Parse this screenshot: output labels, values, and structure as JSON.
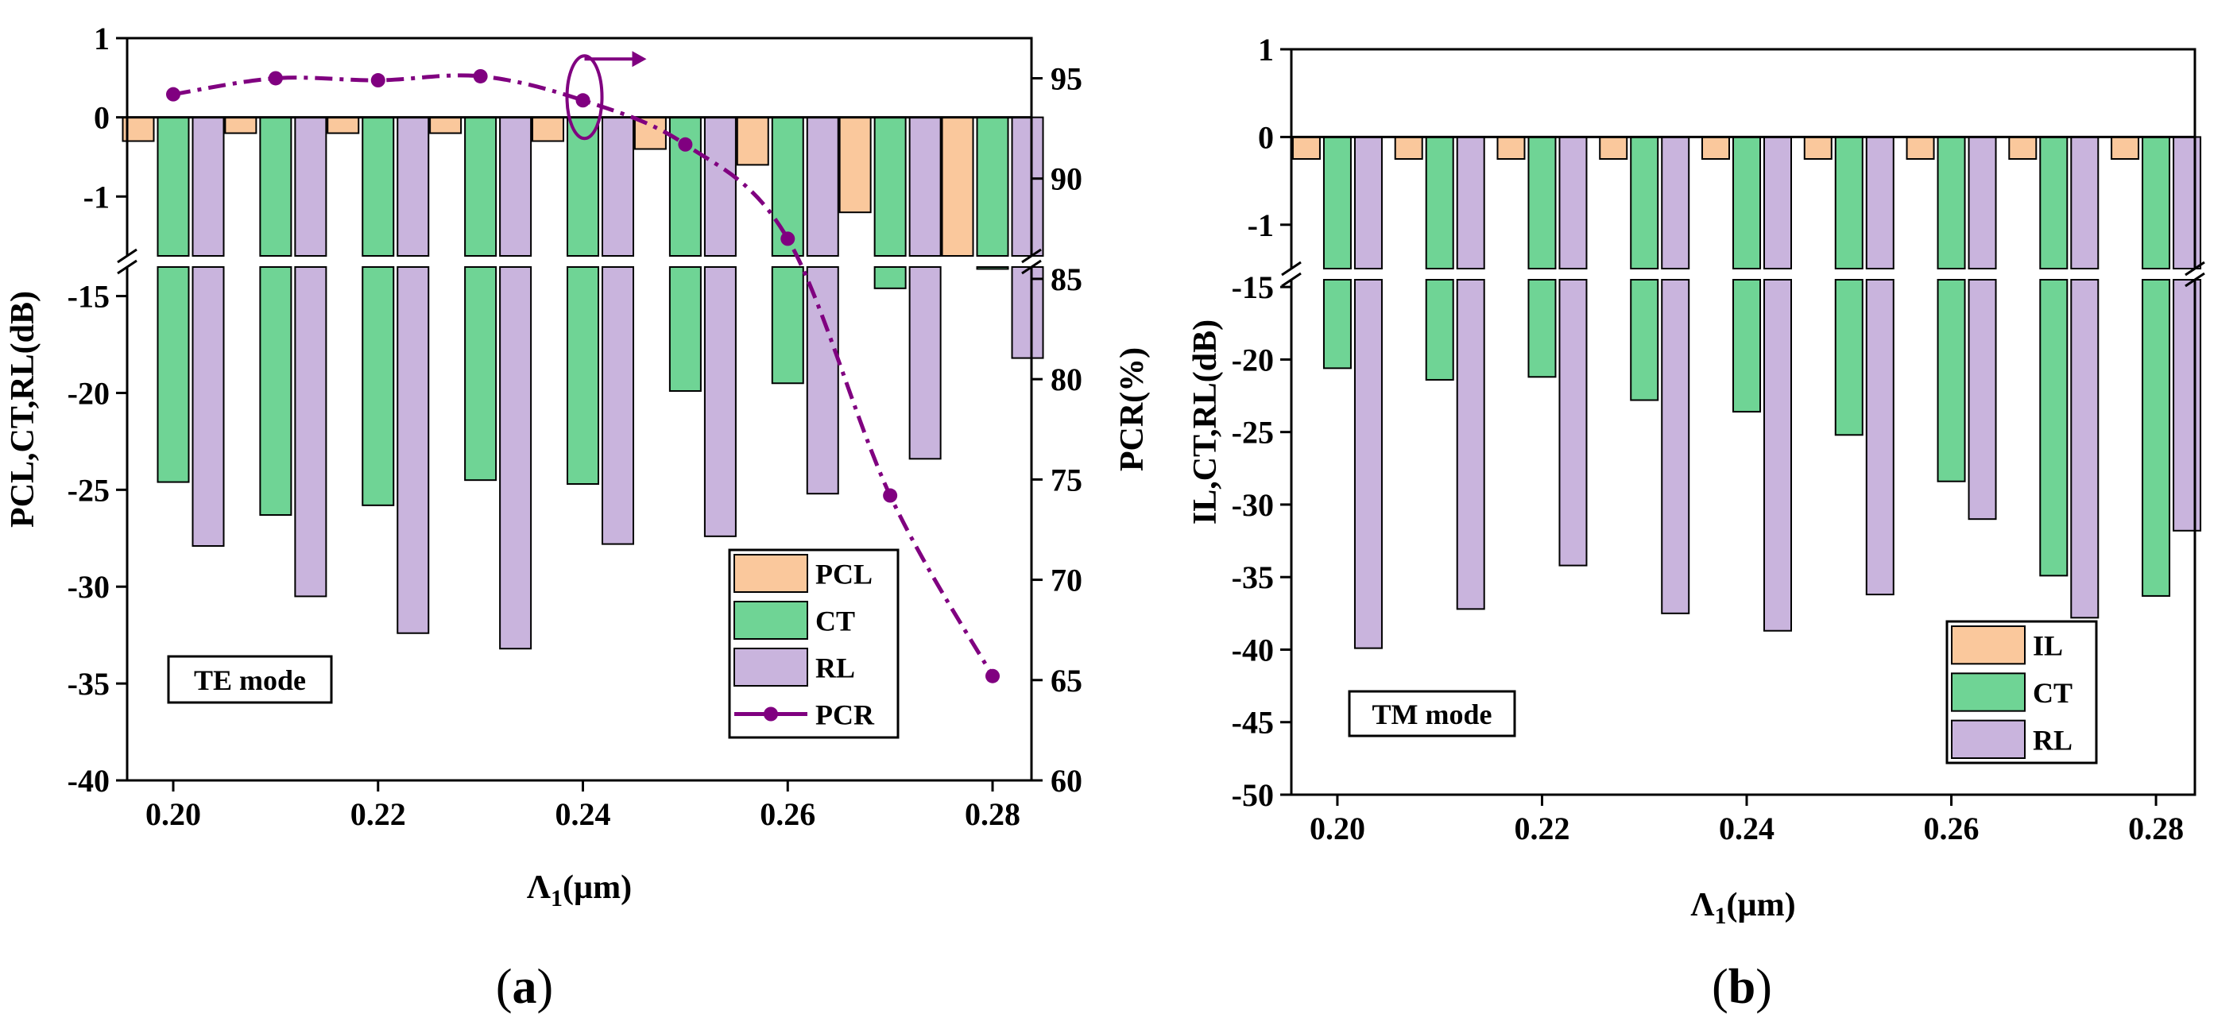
{
  "colors": {
    "orange": "#FAC89C",
    "green": "#6FD495",
    "purple": "#C9B4DD",
    "line": "#800080",
    "break": "#FFFFFF"
  },
  "panel_labels": {
    "a": "a",
    "b": "b"
  },
  "chart_data": [
    {
      "type": "bar",
      "panel": "a",
      "mode_label": "TE mode",
      "xlabel_main": "Λ",
      "xlabel_sub": "1",
      "xlabel_unit": "(µm)",
      "ylabel": "PCL,CT,RL(dB)",
      "y2label": "PCR(%)",
      "x": [
        0.2,
        0.21,
        0.22,
        0.23,
        0.24,
        0.25,
        0.26,
        0.27,
        0.28
      ],
      "x_ticks": [
        "0.20",
        "0.22",
        "0.24",
        "0.26",
        "0.28"
      ],
      "y_ticks_top": [
        "1",
        "0",
        "-1"
      ],
      "y_ticks_bottom": [
        "-15",
        "-20",
        "-25",
        "-30",
        "-35",
        "-40"
      ],
      "y2_ticks": [
        "95",
        "90",
        "85",
        "80",
        "75",
        "70",
        "65",
        "60"
      ],
      "ylim_top": [
        -1.75,
        1.0
      ],
      "ylim_bottom": [
        -40,
        -13.5
      ],
      "y2lim": [
        60,
        97
      ],
      "series": [
        {
          "name": "PCL",
          "color_key": "orange",
          "values": [
            -0.3,
            -0.2,
            -0.2,
            -0.2,
            -0.3,
            -0.4,
            -0.6,
            -1.2,
            -1.75
          ]
        },
        {
          "name": "CT",
          "color_key": "green",
          "values": [
            -24.6,
            -26.3,
            -25.8,
            -24.5,
            -24.7,
            -19.9,
            -19.5,
            -14.6,
            -13.6
          ]
        },
        {
          "name": "RL",
          "color_key": "purple",
          "values": [
            -27.9,
            -30.5,
            -32.4,
            -33.2,
            -27.8,
            -27.4,
            -25.2,
            -23.4,
            -18.2
          ]
        },
        {
          "name": "PCR",
          "type": "line",
          "color_key": "line",
          "values": [
            94.2,
            95.0,
            94.9,
            95.1,
            93.9,
            91.7,
            87.0,
            74.2,
            65.2
          ]
        }
      ],
      "legend": [
        "PCL",
        "CT",
        "RL",
        "PCR"
      ]
    },
    {
      "type": "bar",
      "panel": "b",
      "mode_label": "TM mode",
      "xlabel_main": "Λ",
      "xlabel_sub": "1",
      "xlabel_unit": "(µm)",
      "ylabel": "IL,CT,RL(dB)",
      "x": [
        0.2,
        0.21,
        0.22,
        0.23,
        0.24,
        0.25,
        0.26,
        0.27,
        0.28
      ],
      "x_ticks": [
        "0.20",
        "0.22",
        "0.24",
        "0.26",
        "0.28"
      ],
      "y_ticks_top": [
        "1",
        "0",
        "-1"
      ],
      "y_ticks_bottom": [
        "-15",
        "-20",
        "-25",
        "-30",
        "-35",
        "-40",
        "-45",
        "-50"
      ],
      "ylim_top": [
        -1.5,
        1.0
      ],
      "ylim_bottom": [
        -50,
        -14.5
      ],
      "series": [
        {
          "name": "IL",
          "color_key": "orange",
          "values": [
            -0.25,
            -0.25,
            -0.25,
            -0.25,
            -0.25,
            -0.25,
            -0.25,
            -0.25,
            -0.25
          ]
        },
        {
          "name": "CT",
          "color_key": "green",
          "values": [
            -20.6,
            -21.4,
            -21.2,
            -22.8,
            -23.6,
            -25.2,
            -28.4,
            -34.9,
            -36.3
          ]
        },
        {
          "name": "RL",
          "color_key": "purple",
          "values": [
            -39.9,
            -37.2,
            -34.2,
            -37.5,
            -38.7,
            -36.2,
            -31.0,
            -37.8,
            -31.8
          ]
        }
      ],
      "legend": [
        "IL",
        "CT",
        "RL"
      ]
    }
  ]
}
